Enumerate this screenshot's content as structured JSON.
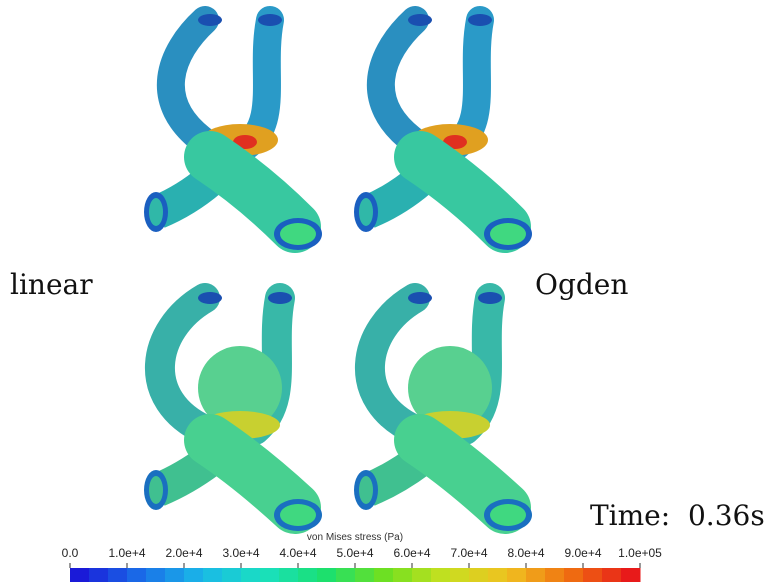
{
  "labels": {
    "left": "linear",
    "right": "Ogden",
    "time": "Time:  0.36s"
  },
  "colorbar": {
    "title": "von Mises stress (Pa)",
    "ticks": [
      {
        "value": 0,
        "label": "0.0"
      },
      {
        "value": 10000,
        "label": "1.0e+4"
      },
      {
        "value": 20000,
        "label": "2.0e+4"
      },
      {
        "value": 30000,
        "label": "3.0e+4"
      },
      {
        "value": 40000,
        "label": "4.0e+4"
      },
      {
        "value": 50000,
        "label": "5.0e+4"
      },
      {
        "value": 60000,
        "label": "6.0e+4"
      },
      {
        "value": 70000,
        "label": "7.0e+4"
      },
      {
        "value": 80000,
        "label": "8.0e+4"
      },
      {
        "value": 90000,
        "label": "9.0e+4"
      },
      {
        "value": 100000,
        "label": "1.0e+05"
      }
    ],
    "colors": [
      "#1a1ad8",
      "#1a6ee8",
      "#1ab8e8",
      "#1ae0c0",
      "#1ae070",
      "#70e020",
      "#c8e020",
      "#f0c020",
      "#f07010",
      "#e81a1a"
    ]
  }
}
